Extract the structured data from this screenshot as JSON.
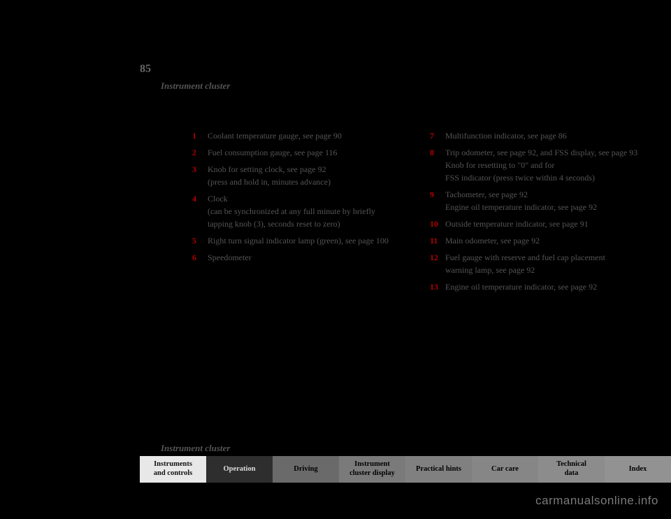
{
  "page_number": "85",
  "section": "Instrument cluster",
  "footer_section": "Instrument cluster",
  "left_column": [
    {
      "num": "1",
      "label": "Coolant temperature gauge, see page 90",
      "ref": ""
    },
    {
      "num": "2",
      "label": "Fuel consumption gauge, see page 116",
      "ref": ""
    },
    {
      "num": "3",
      "label": "Knob for setting clock, see page 92\n(press and hold in, minutes advance)",
      "ref": ""
    },
    {
      "num": "4",
      "label": "Clock\n(can be synchronized at any full minute by briefly tapping knob (3), seconds reset to zero)",
      "ref": ""
    },
    {
      "num": "5",
      "label": "Right turn signal indicator lamp (green), see page 100",
      "ref": ""
    },
    {
      "num": "6",
      "label": "Speedometer",
      "ref": ""
    }
  ],
  "right_column": [
    {
      "num": "7",
      "label": "Multifunction indicator, see page 86",
      "ref": ""
    },
    {
      "num": "8",
      "label": "Trip odometer, see page 92, and FSS display, see page 93\nKnob for resetting to \"0\" and for\nFSS indicator (press twice within 4 seconds)",
      "ref": ""
    },
    {
      "num": "9",
      "label": "Tachometer, see page 92\nEngine oil temperature indicator, see page 92",
      "ref": ""
    },
    {
      "num": "10",
      "label": "Outside temperature indicator, see page 91",
      "ref": ""
    },
    {
      "num": "11",
      "label": "Main odometer, see page 92",
      "ref": ""
    },
    {
      "num": "12",
      "label": "Fuel gauge with reserve and fuel cap placement\nwarning lamp, see page 92",
      "ref": ""
    },
    {
      "num": "13",
      "label": "Engine oil temperature indicator, see page 92",
      "ref": ""
    }
  ],
  "tabs": [
    "Instruments\nand controls",
    "Operation",
    "Driving",
    "Instrument\ncluster display",
    "Practical hints",
    "Car care",
    "Technical\ndata",
    "Index"
  ],
  "watermark": "carmanualsonline.info",
  "colors": {
    "background": "#000000",
    "numeral": "#b30000",
    "body_text": "#555555",
    "active_tab_bg": "#e8e8e8",
    "dark_tab_bg": "#2e2e2e",
    "watermark": "#7a7a7a"
  },
  "typography": {
    "body_fontsize_pt": 9,
    "section_fontsize_pt": 10,
    "page_number_fontsize_pt": 12,
    "tab_fontsize_pt": 8,
    "font_family": "Georgia / serif"
  }
}
